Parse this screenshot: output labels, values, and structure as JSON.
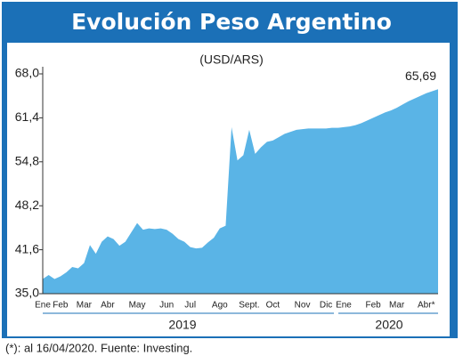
{
  "chart_data": {
    "type": "area",
    "title": "Evolución Peso Argentino",
    "subtitle": "(USD/ARS)",
    "categories": [
      "Ene",
      null,
      null,
      "Feb",
      null,
      null,
      null,
      "Mar",
      null,
      null,
      null,
      "Abr",
      null,
      null,
      null,
      null,
      "May",
      null,
      null,
      null,
      null,
      "Jun",
      null,
      null,
      null,
      "Jul",
      null,
      null,
      null,
      null,
      "Ago",
      null,
      null,
      null,
      null,
      "Sept.",
      null,
      null,
      null,
      "Oct",
      null,
      null,
      null,
      null,
      "Nov",
      null,
      null,
      null,
      "Dic",
      null,
      null,
      "Ene",
      null,
      null,
      null,
      null,
      "Feb",
      null,
      null,
      null,
      "Mar",
      null,
      null,
      null,
      null,
      "Abr*",
      null,
      null
    ],
    "values": [
      37.2,
      37.8,
      37.2,
      37.6,
      38.2,
      39.0,
      38.8,
      39.6,
      42.3,
      41.0,
      42.8,
      43.6,
      43.2,
      42.2,
      42.8,
      44.2,
      45.6,
      44.6,
      44.8,
      44.7,
      44.8,
      44.6,
      44.0,
      43.2,
      42.8,
      42.0,
      41.8,
      41.9,
      42.7,
      43.4,
      44.8,
      45.2,
      60.0,
      55.0,
      55.8,
      59.6,
      56.0,
      57.0,
      57.8,
      58.0,
      58.5,
      59.0,
      59.3,
      59.6,
      59.7,
      59.8,
      59.8,
      59.8,
      59.8,
      59.9,
      59.9,
      60.0,
      60.1,
      60.3,
      60.6,
      61.0,
      61.4,
      61.8,
      62.2,
      62.5,
      62.9,
      63.4,
      63.9,
      64.3,
      64.7,
      65.1,
      65.4,
      65.69
    ],
    "value_labels": [
      null,
      null,
      null,
      null,
      null,
      null,
      null,
      null,
      null,
      null,
      null,
      null,
      null,
      null,
      null,
      null,
      null,
      null,
      null,
      null,
      null,
      null,
      null,
      null,
      null,
      null,
      null,
      null,
      null,
      null,
      null,
      null,
      null,
      null,
      null,
      null,
      null,
      null,
      null,
      null,
      null,
      null,
      null,
      null,
      null,
      null,
      null,
      null,
      null,
      null,
      null,
      null,
      null,
      null,
      null,
      null,
      null,
      null,
      null,
      null,
      null,
      null,
      null,
      null,
      null,
      null,
      null,
      "65,69"
    ],
    "color": "#5ab4e6",
    "ylim": [
      35,
      68
    ],
    "yticks": [
      {
        "value": 35,
        "label": "35,0"
      },
      {
        "value": 41.6,
        "label": "41,6"
      },
      {
        "value": 48.2,
        "label": "48,2"
      },
      {
        "value": 54.8,
        "label": "54,8"
      },
      {
        "value": 61.4,
        "label": "61,4"
      },
      {
        "value": 68,
        "label": "68,0"
      }
    ],
    "year_labels": [
      "2019",
      "2020"
    ],
    "footnote": "(*): al 16/04/2020. Fuente: Investing."
  }
}
